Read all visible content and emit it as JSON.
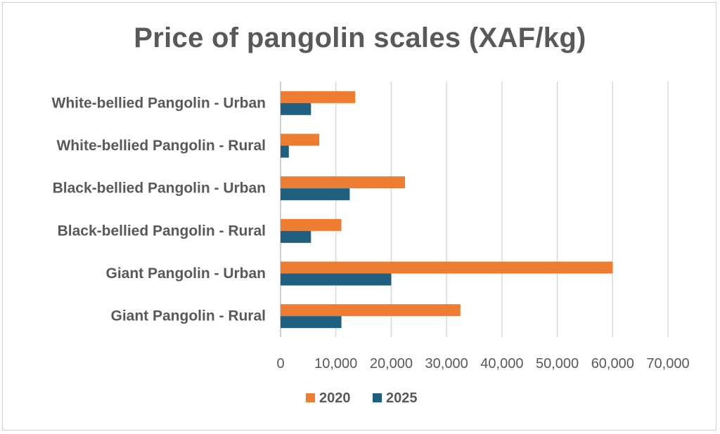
{
  "chart_data": {
    "type": "bar",
    "orientation": "horizontal",
    "title": "Price of pangolin scales (XAF/kg)",
    "xlabel": "",
    "ylabel": "",
    "categories": [
      "White-bellied Pangolin - Urban",
      "White-bellied Pangolin - Rural",
      "Black-bellied Pangolin - Urban",
      "Black-bellied Pangolin - Rural",
      "Giant Pangolin - Urban",
      "Giant Pangolin - Rural"
    ],
    "series": [
      {
        "name": "2020",
        "color": "#ed7d31",
        "values": [
          13500,
          7000,
          22500,
          11000,
          60000,
          32500
        ]
      },
      {
        "name": "2025",
        "color": "#1f5f7f",
        "values": [
          5500,
          1500,
          12500,
          5500,
          20000,
          11000
        ]
      }
    ],
    "xlim": [
      0,
      70000
    ],
    "xticks": [
      0,
      10000,
      20000,
      30000,
      40000,
      50000,
      60000,
      70000
    ],
    "xtick_labels": [
      "0",
      "10,000",
      "20,000",
      "30,000",
      "40,000",
      "50,000",
      "60,000",
      "70,000"
    ],
    "grid": true,
    "legend_position": "bottom"
  }
}
